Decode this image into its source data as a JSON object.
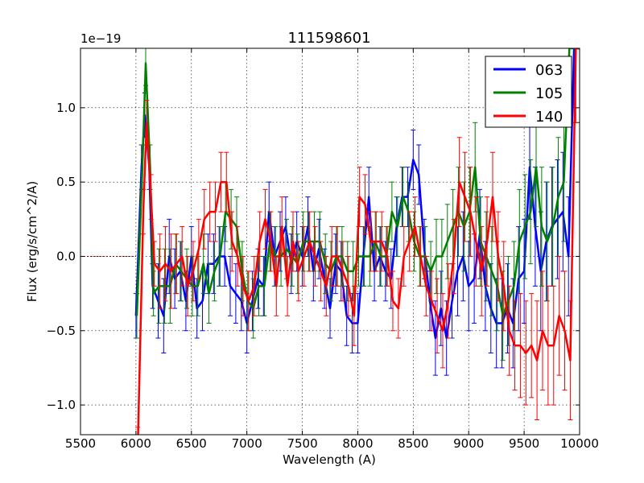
{
  "chart_data": {
    "type": "line",
    "title": "111598601",
    "xlabel": "Wavelength (A)",
    "ylabel": "Flux (erg/s/cm^2/A)",
    "offset_text": "1e−19",
    "xlim": [
      5500,
      10000
    ],
    "ylim": [
      -1.2,
      1.4
    ],
    "x_ticks": [
      5500,
      6000,
      6500,
      7000,
      7500,
      8000,
      8500,
      9000,
      9500,
      10000
    ],
    "y_ticks": [
      -1.0,
      -0.5,
      0.0,
      0.5,
      1.0
    ],
    "y_tick_labels": [
      "−1.0",
      "−0.5",
      "0.0",
      "0.5",
      "1.0"
    ],
    "grid": true,
    "legend_position": "upper right",
    "zero_line": {
      "x_from": 5500,
      "x_to": 6000,
      "color": "#8b0000"
    },
    "series": [
      {
        "name": "063",
        "color": "#0000ff",
        "x": [
          6000,
          6050,
          6080,
          6120,
          6150,
          6200,
          6250,
          6300,
          6350,
          6400,
          6450,
          6500,
          6550,
          6600,
          6650,
          6700,
          6750,
          6800,
          6850,
          6900,
          6950,
          7000,
          7050,
          7100,
          7150,
          7200,
          7250,
          7300,
          7350,
          7400,
          7450,
          7500,
          7550,
          7600,
          7650,
          7700,
          7750,
          7800,
          7850,
          7900,
          7950,
          8000,
          8050,
          8100,
          8150,
          8200,
          8250,
          8300,
          8350,
          8400,
          8450,
          8500,
          8550,
          8600,
          8650,
          8700,
          8750,
          8800,
          8850,
          8900,
          8950,
          9000,
          9050,
          9100,
          9150,
          9200,
          9250,
          9300,
          9350,
          9400,
          9450,
          9500,
          9550,
          9600,
          9650,
          9700,
          9750,
          9800,
          9850,
          9900,
          9950,
          10000
        ],
        "y": [
          -0.4,
          0.6,
          0.95,
          0.6,
          -0.2,
          -0.3,
          -0.4,
          0.0,
          -0.15,
          -0.1,
          -0.3,
          0.0,
          -0.35,
          -0.3,
          -0.05,
          -0.05,
          0.0,
          0.0,
          -0.2,
          -0.25,
          -0.3,
          -0.45,
          -0.3,
          -0.15,
          -0.2,
          0.3,
          0.0,
          0.1,
          0.2,
          -0.05,
          0.1,
          0.0,
          0.2,
          -0.1,
          0.05,
          -0.15,
          -0.35,
          -0.05,
          -0.1,
          -0.4,
          -0.45,
          -0.45,
          0.0,
          0.4,
          -0.1,
          0.0,
          -0.1,
          -0.15,
          0.2,
          0.4,
          0.4,
          0.65,
          0.55,
          0.05,
          -0.3,
          -0.55,
          -0.35,
          -0.55,
          -0.3,
          -0.1,
          0.0,
          -0.2,
          -0.15,
          0.15,
          -0.2,
          -0.35,
          -0.45,
          -0.45,
          -0.35,
          -0.45,
          -0.15,
          -0.1,
          0.6,
          0.2,
          -0.1,
          0.1,
          0.2,
          0.25,
          0.3,
          0.0,
          1.4,
          1.4
        ],
        "err": [
          0.15,
          0.15,
          0.15,
          0.15,
          0.15,
          0.25,
          0.25,
          0.25,
          0.2,
          0.2,
          0.2,
          0.2,
          0.2,
          0.2,
          0.2,
          0.2,
          0.2,
          0.2,
          0.2,
          0.2,
          0.2,
          0.2,
          0.2,
          0.2,
          0.2,
          0.2,
          0.2,
          0.2,
          0.2,
          0.2,
          0.2,
          0.2,
          0.2,
          0.2,
          0.2,
          0.2,
          0.2,
          0.2,
          0.2,
          0.2,
          0.2,
          0.2,
          0.2,
          0.2,
          0.2,
          0.2,
          0.2,
          0.2,
          0.2,
          0.2,
          0.2,
          0.2,
          0.2,
          0.2,
          0.2,
          0.25,
          0.25,
          0.25,
          0.25,
          0.3,
          0.3,
          0.3,
          0.3,
          0.3,
          0.3,
          0.3,
          0.3,
          0.3,
          0.3,
          0.3,
          0.35,
          0.35,
          0.35,
          0.4,
          0.4,
          0.4,
          0.4,
          0.4,
          0.4,
          0.4,
          0.5,
          0.5
        ]
      },
      {
        "name": "105",
        "color": "#008000",
        "x": [
          6000,
          6050,
          6080,
          6120,
          6150,
          6200,
          6250,
          6300,
          6350,
          6400,
          6450,
          6500,
          6550,
          6600,
          6650,
          6700,
          6750,
          6800,
          6850,
          6900,
          6950,
          7000,
          7050,
          7100,
          7150,
          7200,
          7250,
          7300,
          7350,
          7400,
          7450,
          7500,
          7550,
          7600,
          7650,
          7700,
          7750,
          7800,
          7850,
          7900,
          7950,
          8000,
          8050,
          8100,
          8150,
          8200,
          8250,
          8300,
          8350,
          8400,
          8450,
          8500,
          8550,
          8600,
          8650,
          8700,
          8750,
          8800,
          8850,
          8900,
          8950,
          9000,
          9050,
          9100,
          9150,
          9200,
          9250,
          9300,
          9350,
          9400,
          9450,
          9500,
          9550,
          9600,
          9650,
          9700,
          9750,
          9800,
          9850,
          9900,
          9950,
          10000
        ],
        "y": [
          -0.4,
          0.6,
          1.3,
          0.6,
          -0.25,
          -0.2,
          -0.2,
          -0.2,
          -0.05,
          -0.1,
          -0.15,
          -0.2,
          -0.2,
          -0.05,
          -0.25,
          -0.1,
          0.0,
          0.3,
          0.25,
          0.2,
          -0.1,
          -0.3,
          -0.35,
          -0.2,
          -0.2,
          0.1,
          0.0,
          0.0,
          0.05,
          0.0,
          -0.05,
          0.1,
          0.1,
          0.1,
          0.1,
          -0.05,
          -0.1,
          0.0,
          0.0,
          -0.1,
          -0.1,
          0.0,
          0.0,
          0.0,
          0.1,
          0.0,
          0.0,
          0.3,
          0.2,
          0.4,
          0.3,
          0.1,
          0.0,
          0.0,
          -0.1,
          0.0,
          0.0,
          0.1,
          0.2,
          0.3,
          0.2,
          0.3,
          0.6,
          0.1,
          0.0,
          -0.1,
          -0.2,
          -0.4,
          -0.3,
          -0.2,
          0.1,
          0.2,
          0.3,
          0.6,
          0.2,
          0.1,
          0.2,
          0.4,
          0.5,
          1.4,
          1.4,
          1.4
        ],
        "err": [
          0.15,
          0.15,
          0.15,
          0.15,
          0.15,
          0.25,
          0.25,
          0.25,
          0.2,
          0.2,
          0.2,
          0.2,
          0.2,
          0.2,
          0.2,
          0.2,
          0.2,
          0.2,
          0.2,
          0.2,
          0.2,
          0.2,
          0.2,
          0.2,
          0.2,
          0.2,
          0.2,
          0.2,
          0.2,
          0.2,
          0.2,
          0.2,
          0.2,
          0.2,
          0.2,
          0.2,
          0.2,
          0.2,
          0.2,
          0.2,
          0.2,
          0.2,
          0.2,
          0.2,
          0.2,
          0.2,
          0.2,
          0.2,
          0.2,
          0.2,
          0.2,
          0.2,
          0.2,
          0.2,
          0.2,
          0.25,
          0.25,
          0.25,
          0.25,
          0.3,
          0.3,
          0.3,
          0.3,
          0.3,
          0.3,
          0.3,
          0.3,
          0.3,
          0.3,
          0.3,
          0.35,
          0.35,
          0.35,
          0.4,
          0.4,
          0.4,
          0.4,
          0.4,
          0.4,
          0.4,
          0.5,
          0.5
        ]
      },
      {
        "name": "140",
        "color": "#ff0000",
        "x": [
          6000,
          6050,
          6080,
          6120,
          6150,
          6200,
          6250,
          6300,
          6350,
          6400,
          6450,
          6500,
          6550,
          6600,
          6650,
          6700,
          6750,
          6800,
          6850,
          6900,
          6950,
          7000,
          7050,
          7100,
          7150,
          7200,
          7250,
          7300,
          7350,
          7400,
          7450,
          7500,
          7550,
          7600,
          7650,
          7700,
          7750,
          7800,
          7850,
          7900,
          7950,
          8000,
          8050,
          8100,
          8150,
          8200,
          8250,
          8300,
          8350,
          8400,
          8450,
          8500,
          8550,
          8600,
          8650,
          8700,
          8750,
          8800,
          8850,
          8900,
          8950,
          9000,
          9050,
          9100,
          9150,
          9200,
          9250,
          9300,
          9350,
          9400,
          9450,
          9500,
          9550,
          9600,
          9650,
          9700,
          9750,
          9800,
          9850,
          9900,
          9950,
          10000
        ],
        "y": [
          -1.3,
          0.3,
          0.9,
          0.4,
          -0.05,
          -0.1,
          -0.05,
          -0.1,
          -0.05,
          0.0,
          -0.2,
          -0.1,
          0.05,
          0.25,
          0.3,
          0.3,
          0.5,
          0.5,
          0.1,
          0.0,
          -0.2,
          -0.3,
          -0.2,
          0.1,
          0.25,
          0.1,
          -0.2,
          0.2,
          -0.2,
          0.1,
          -0.1,
          0.0,
          0.1,
          0.0,
          -0.1,
          -0.2,
          0.0,
          0.0,
          -0.1,
          -0.2,
          -0.4,
          0.4,
          0.35,
          0.1,
          0.1,
          0.1,
          0.0,
          -0.3,
          -0.35,
          0.0,
          0.1,
          0.2,
          0.0,
          -0.2,
          -0.3,
          -0.4,
          -0.5,
          -0.3,
          0.0,
          0.5,
          0.4,
          0.3,
          0.1,
          -0.1,
          0.1,
          0.4,
          0.0,
          -0.2,
          -0.5,
          -0.6,
          -0.6,
          -0.65,
          -0.6,
          -0.7,
          -0.5,
          -0.6,
          -0.6,
          -0.4,
          -0.5,
          -0.7,
          1.4,
          1.4
        ],
        "err": [
          0.15,
          0.15,
          0.15,
          0.15,
          0.15,
          0.25,
          0.25,
          0.25,
          0.2,
          0.2,
          0.2,
          0.2,
          0.2,
          0.2,
          0.2,
          0.2,
          0.2,
          0.2,
          0.2,
          0.2,
          0.2,
          0.2,
          0.2,
          0.2,
          0.2,
          0.2,
          0.2,
          0.2,
          0.2,
          0.2,
          0.2,
          0.2,
          0.2,
          0.2,
          0.2,
          0.2,
          0.2,
          0.2,
          0.2,
          0.2,
          0.2,
          0.2,
          0.2,
          0.2,
          0.2,
          0.2,
          0.2,
          0.2,
          0.2,
          0.2,
          0.2,
          0.2,
          0.2,
          0.2,
          0.2,
          0.25,
          0.25,
          0.25,
          0.25,
          0.3,
          0.3,
          0.3,
          0.3,
          0.3,
          0.3,
          0.3,
          0.3,
          0.3,
          0.3,
          0.3,
          0.35,
          0.35,
          0.35,
          0.4,
          0.4,
          0.4,
          0.4,
          0.4,
          0.4,
          0.4,
          0.5,
          0.5
        ]
      }
    ]
  }
}
